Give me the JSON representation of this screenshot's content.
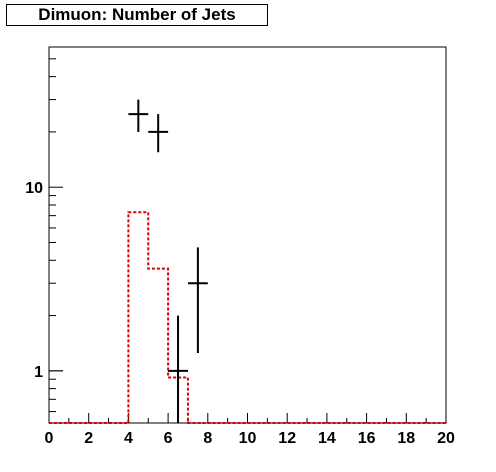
{
  "title": "Dimuon: Number of Jets",
  "chart_data": {
    "type": "histogram",
    "title": "Dimuon: Number of Jets",
    "xlabel": "",
    "ylabel": "",
    "xlim": [
      0,
      20
    ],
    "ylim": [
      0.52,
      58
    ],
    "y_scale": "log",
    "grid": false,
    "legend": "none",
    "x_ticks": [
      "0",
      "2",
      "4",
      "6",
      "8",
      "10",
      "12",
      "14",
      "16",
      "18",
      "20"
    ],
    "y_ticks": [
      {
        "value": 1,
        "label": "1"
      },
      {
        "value": 10,
        "label": "10"
      }
    ],
    "series": [
      {
        "style": "step-dashed",
        "color": "#e00000",
        "bin_edges": [
          0,
          1,
          2,
          3,
          4,
          5,
          6,
          7,
          8,
          9,
          10,
          11,
          12,
          13,
          14,
          15,
          16,
          17,
          18,
          19,
          20
        ],
        "values": [
          0,
          0,
          0,
          0,
          7.3,
          3.6,
          0.92,
          0,
          0,
          0,
          0,
          0,
          0,
          0,
          0,
          0,
          0,
          0,
          0,
          0
        ]
      },
      {
        "style": "error-bars",
        "color": "#000000",
        "points": [
          {
            "x": 4.5,
            "y": 25,
            "ylow": 20,
            "yhigh": 30
          },
          {
            "x": 5.5,
            "y": 20,
            "ylow": 15.5,
            "yhigh": 25
          },
          {
            "x": 6.5,
            "y": 1,
            "ylow": 0.52,
            "yhigh": 2
          },
          {
            "x": 7.5,
            "y": 3,
            "ylow": 1.25,
            "yhigh": 4.7
          }
        ]
      }
    ]
  }
}
